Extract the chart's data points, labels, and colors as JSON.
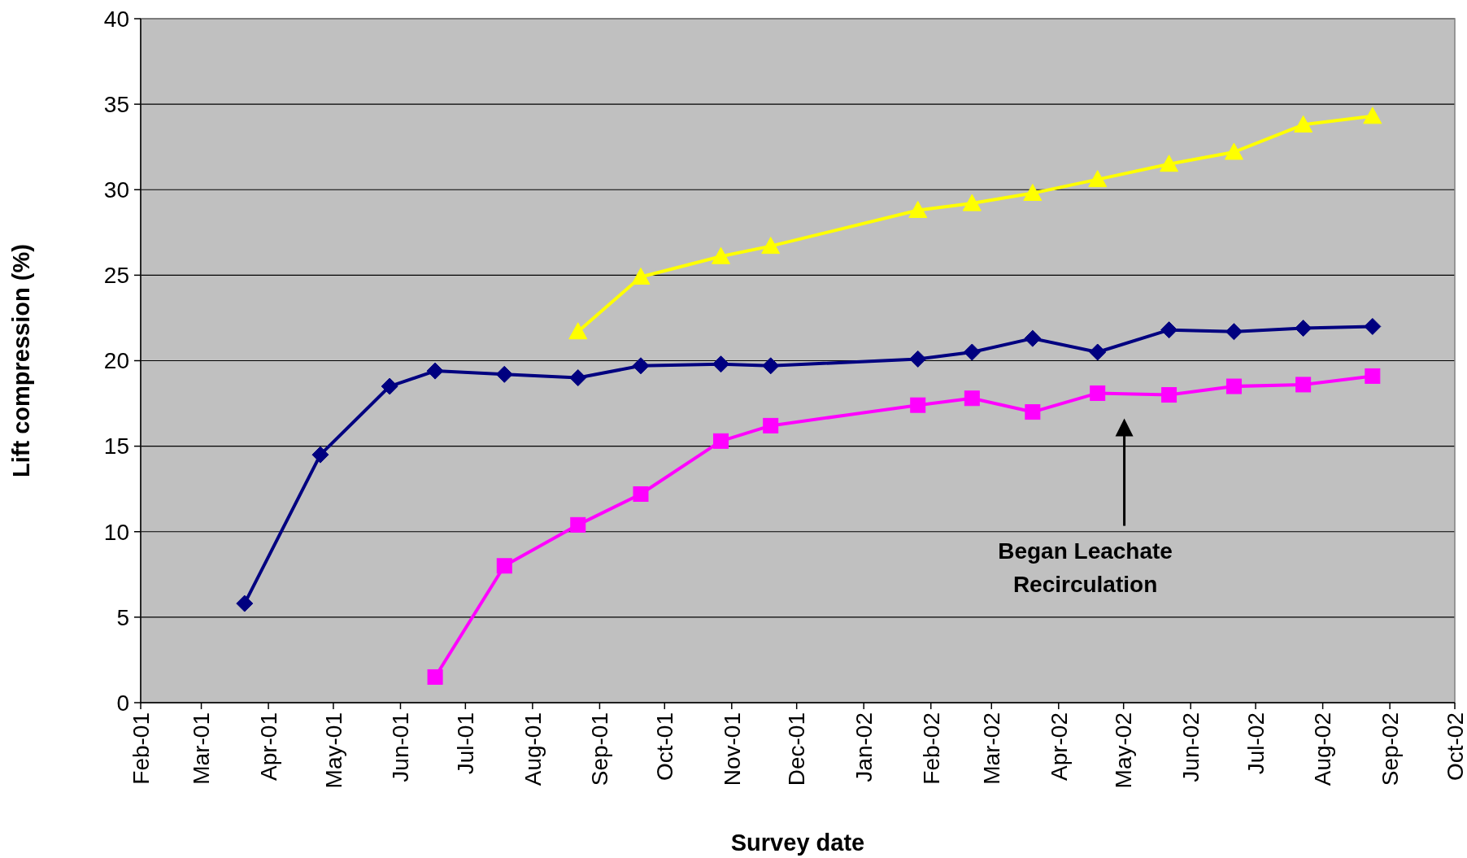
{
  "chart_data": {
    "type": "line",
    "xlabel": "Survey date",
    "ylabel": "Lift compression (%)",
    "xlim": [
      "2001-02-01",
      "2002-10-01"
    ],
    "xticks": [
      {
        "value": "2001-02-01",
        "label": "Feb-01"
      },
      {
        "value": "2001-03-01",
        "label": "Mar-01"
      },
      {
        "value": "2001-04-01",
        "label": "Apr-01"
      },
      {
        "value": "2001-05-01",
        "label": "May-01"
      },
      {
        "value": "2001-06-01",
        "label": "Jun-01"
      },
      {
        "value": "2001-07-01",
        "label": "Jul-01"
      },
      {
        "value": "2001-08-01",
        "label": "Aug-01"
      },
      {
        "value": "2001-09-01",
        "label": "Sep-01"
      },
      {
        "value": "2001-10-01",
        "label": "Oct-01"
      },
      {
        "value": "2001-11-01",
        "label": "Nov-01"
      },
      {
        "value": "2001-12-01",
        "label": "Dec-01"
      },
      {
        "value": "2002-01-01",
        "label": "Jan-02"
      },
      {
        "value": "2002-02-01",
        "label": "Feb-02"
      },
      {
        "value": "2002-03-01",
        "label": "Mar-02"
      },
      {
        "value": "2002-04-01",
        "label": "Apr-02"
      },
      {
        "value": "2002-05-01",
        "label": "May-02"
      },
      {
        "value": "2002-06-01",
        "label": "Jun-02"
      },
      {
        "value": "2002-07-01",
        "label": "Jul-02"
      },
      {
        "value": "2002-08-01",
        "label": "Aug-02"
      },
      {
        "value": "2002-09-01",
        "label": "Sep-02"
      },
      {
        "value": "2002-10-01",
        "label": "Oct-02"
      }
    ],
    "ylim": [
      0,
      40
    ],
    "yticks": [
      0,
      5,
      10,
      15,
      20,
      25,
      30,
      35,
      40
    ],
    "grid": "y",
    "series": [
      {
        "color": "#000080",
        "marker": "diamond",
        "x": [
          "2001-03-21",
          "2001-04-25",
          "2001-05-27",
          "2001-06-17",
          "2001-07-19",
          "2001-08-22",
          "2001-09-20",
          "2001-10-27",
          "2001-11-19",
          "2002-01-26",
          "2002-02-20",
          "2002-03-20",
          "2002-04-19",
          "2002-05-22",
          "2002-06-21",
          "2002-07-23",
          "2002-08-24"
        ],
        "values": [
          5.8,
          14.5,
          18.5,
          19.4,
          19.2,
          19.0,
          19.7,
          19.8,
          19.7,
          20.1,
          20.5,
          21.3,
          20.5,
          21.8,
          21.7,
          21.9,
          22.0
        ]
      },
      {
        "color": "#ff00ff",
        "marker": "square",
        "x": [
          "2001-06-17",
          "2001-07-19",
          "2001-08-22",
          "2001-09-20",
          "2001-10-27",
          "2001-11-19",
          "2002-01-26",
          "2002-02-20",
          "2002-03-20",
          "2002-04-19",
          "2002-05-22",
          "2002-06-21",
          "2002-07-23",
          "2002-08-24"
        ],
        "values": [
          1.5,
          8.0,
          10.4,
          12.2,
          15.3,
          16.2,
          17.4,
          17.8,
          17.0,
          18.1,
          18.0,
          18.5,
          18.6,
          19.1
        ]
      },
      {
        "color": "#ffff00",
        "marker": "triangle",
        "x": [
          "2001-08-22",
          "2001-09-20",
          "2001-10-27",
          "2001-11-19",
          "2002-01-26",
          "2002-02-20",
          "2002-03-20",
          "2002-04-19",
          "2002-05-22",
          "2002-06-21",
          "2002-07-23",
          "2002-08-24"
        ],
        "values": [
          21.7,
          24.9,
          26.1,
          26.7,
          28.8,
          29.2,
          29.8,
          30.6,
          31.5,
          32.2,
          33.8,
          34.3
        ]
      }
    ],
    "annotations": [
      "Began Leachate Recirculation"
    ]
  }
}
